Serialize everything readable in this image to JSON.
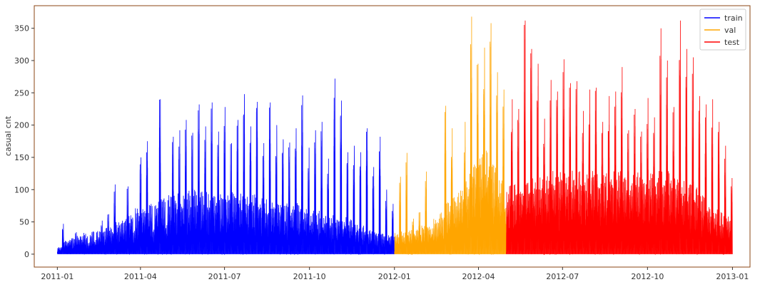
{
  "chart_data": {
    "type": "line",
    "title": "",
    "xlabel": "",
    "ylabel": "casual cnt",
    "x_range": [
      "2010-12-07",
      "2013-01-20"
    ],
    "ylim": [
      -20,
      385
    ],
    "x_ticks": [
      "2011-01",
      "2011-04",
      "2011-07",
      "2011-10",
      "2012-01",
      "2012-04",
      "2012-07",
      "2012-10",
      "2013-01"
    ],
    "y_ticks": [
      0,
      50,
      100,
      150,
      200,
      250,
      300,
      350
    ],
    "grid": false,
    "legend_position": "top-right",
    "colors": {
      "train": "#0000ff",
      "val": "#ffa500",
      "test": "#ff0000",
      "frame": "#8b4513"
    },
    "series": [
      {
        "name": "train",
        "start": "2011-01-01",
        "end": "2011-12-31",
        "weekly_peaks": [
          47,
          22,
          34,
          28,
          18,
          22,
          52,
          62,
          108,
          48,
          105,
          36,
          150,
          175,
          38,
          240,
          45,
          182,
          192,
          208,
          188,
          232,
          198,
          235,
          190,
          228,
          172,
          208,
          248,
          198,
          236,
          172,
          235,
          200,
          178,
          173,
          195,
          246,
          165,
          192,
          205,
          148,
          272,
          238,
          158,
          168,
          158,
          195,
          135,
          182,
          100,
          78,
          118
        ],
        "weekday_levels": [
          10,
          18,
          22,
          25,
          28,
          30,
          32,
          35,
          38,
          42,
          48,
          55,
          60,
          62,
          65,
          70,
          72,
          78,
          80,
          80,
          82,
          85,
          85,
          82,
          80,
          80,
          78,
          80,
          82,
          78,
          80,
          75,
          72,
          70,
          68,
          68,
          65,
          68,
          62,
          60,
          58,
          55,
          52,
          50,
          48,
          45,
          40,
          38,
          32,
          30,
          28,
          25,
          25
        ]
      },
      {
        "name": "val",
        "start": "2012-01-01",
        "end": "2012-04-30",
        "weekly_peaks": [
          120,
          157,
          55,
          65,
          128,
          40,
          55,
          230,
          195,
          95,
          205,
          368,
          295,
          320,
          358,
          282,
          255,
          220
        ],
        "weekday_levels": [
          28,
          30,
          32,
          35,
          38,
          40,
          48,
          55,
          68,
          75,
          85,
          110,
          120,
          140,
          150,
          120,
          100,
          80
        ]
      },
      {
        "name": "test",
        "start": "2012-05-01",
        "end": "2012-12-31",
        "weekly_peaks": [
          240,
          225,
          362,
          318,
          295,
          210,
          270,
          252,
          302,
          265,
          268,
          222,
          255,
          258,
          205,
          245,
          252,
          290,
          192,
          225,
          190,
          242,
          212,
          350,
          300,
          228,
          362,
          318,
          305,
          245,
          232,
          240,
          205,
          168,
          118,
          83,
          72
        ],
        "weekday_levels": [
          90,
          92,
          95,
          98,
          100,
          102,
          105,
          108,
          108,
          110,
          108,
          110,
          112,
          110,
          108,
          110,
          110,
          108,
          105,
          105,
          108,
          110,
          108,
          112,
          110,
          108,
          105,
          100,
          95,
          88,
          80,
          70,
          60,
          55,
          50,
          45,
          40
        ]
      }
    ]
  }
}
